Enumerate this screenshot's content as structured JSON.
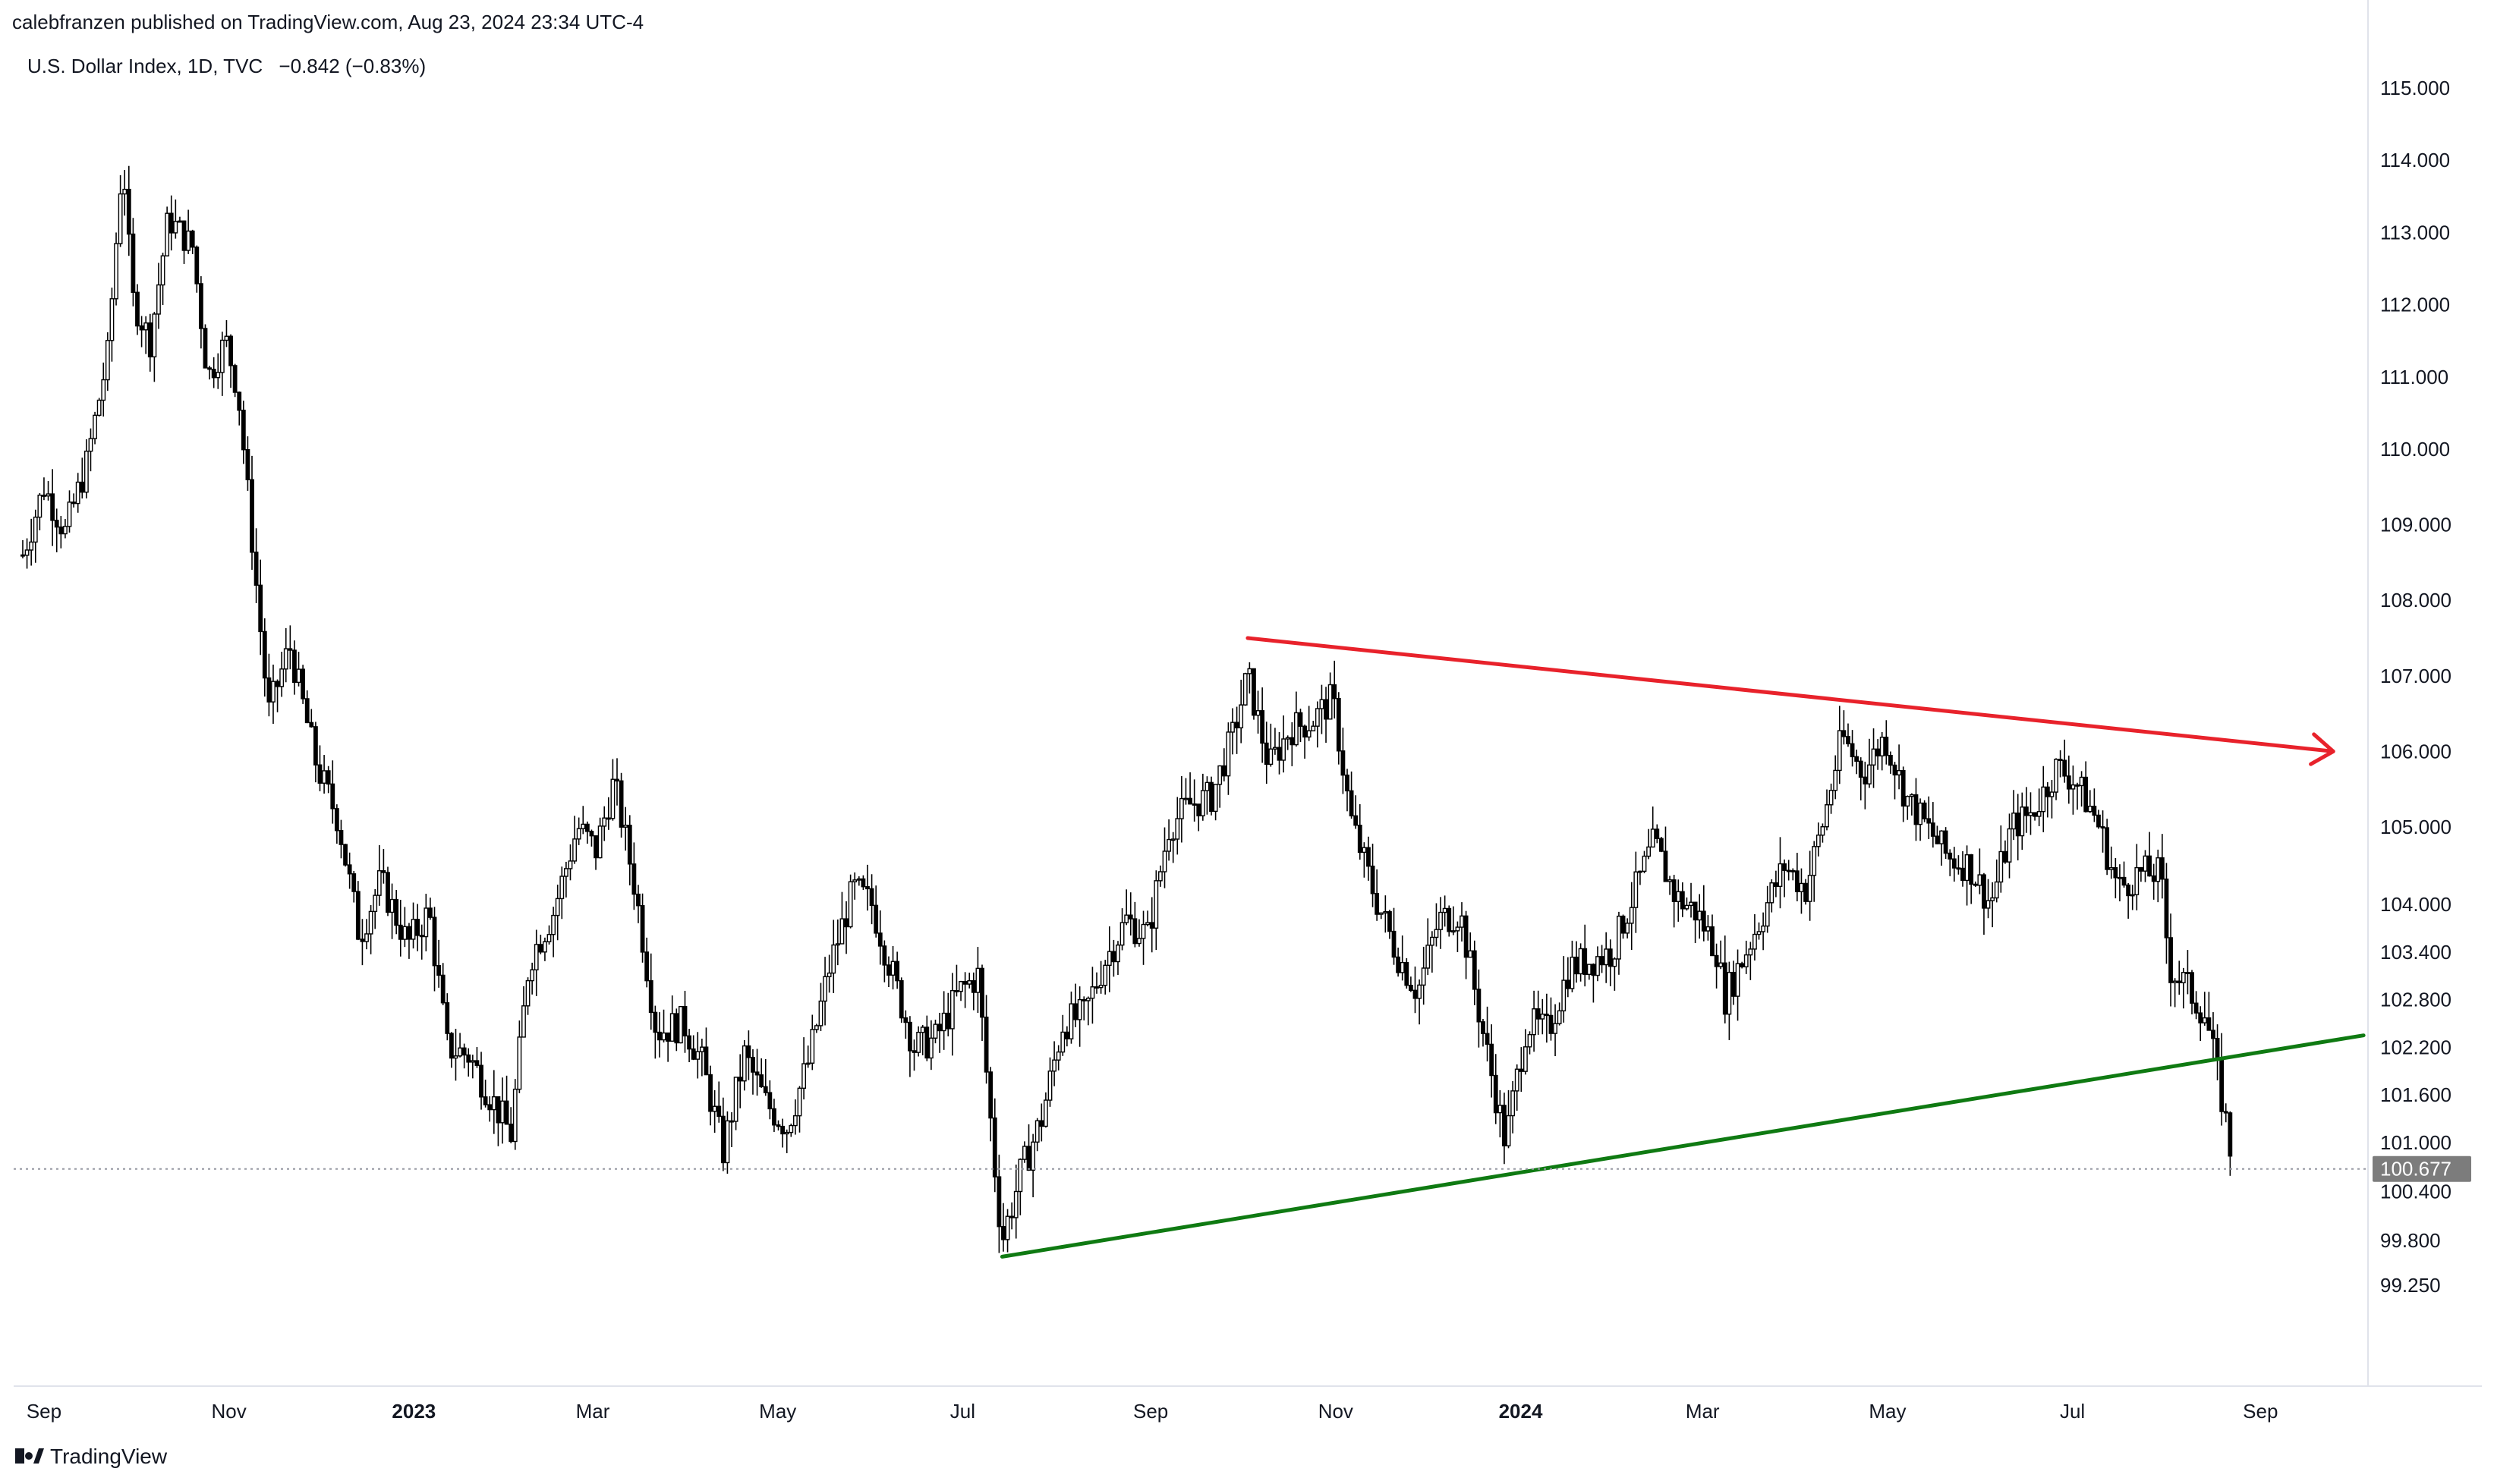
{
  "header": {
    "published": "calebfranzen published on TradingView.com, Aug 23, 2024 23:34 UTC-4"
  },
  "symbol": {
    "name": "U.S. Dollar Index, 1D, TVC",
    "change": "−0.842 (−0.83%)"
  },
  "footer": {
    "brand": "TradingView"
  },
  "colors": {
    "resistance": "#e8222b",
    "support": "#0f7a12",
    "candles": "#000000",
    "price_label_bg": "#7c7c7c"
  },
  "chart_data": {
    "type": "candlestick",
    "title": "U.S. Dollar Index, 1D, TVC",
    "xlabel": "",
    "ylabel": "",
    "y_ticks": [
      "115.000",
      "114.000",
      "113.000",
      "112.000",
      "111.000",
      "110.000",
      "109.000",
      "108.000",
      "107.000",
      "106.000",
      "105.000",
      "104.000",
      "103.400",
      "102.800",
      "102.200",
      "101.600",
      "101.000",
      "100.400",
      "99.800",
      "99.250"
    ],
    "x_ticks": [
      "Sep",
      "Nov",
      "2023",
      "Mar",
      "May",
      "Jul",
      "Sep",
      "Nov",
      "2024",
      "Mar",
      "May",
      "Jul",
      "Sep"
    ],
    "last_price": "100.677",
    "close_path": [
      [
        "2022-08-25",
        108.6
      ],
      [
        "2022-09-01",
        109.5
      ],
      [
        "2022-09-08",
        108.9
      ],
      [
        "2022-09-15",
        109.8
      ],
      [
        "2022-09-22",
        111.3
      ],
      [
        "2022-09-27",
        114.1
      ],
      [
        "2022-09-30",
        112.1
      ],
      [
        "2022-10-06",
        111.5
      ],
      [
        "2022-10-12",
        113.2
      ],
      [
        "2022-10-20",
        112.8
      ],
      [
        "2022-10-25",
        111.0
      ],
      [
        "2022-10-31",
        111.5
      ],
      [
        "2022-11-04",
        110.8
      ],
      [
        "2022-11-10",
        108.2
      ],
      [
        "2022-11-14",
        106.5
      ],
      [
        "2022-11-21",
        107.4
      ],
      [
        "2022-11-30",
        105.8
      ],
      [
        "2022-12-07",
        105.1
      ],
      [
        "2022-12-14",
        103.6
      ],
      [
        "2022-12-21",
        104.3
      ],
      [
        "2022-12-30",
        103.5
      ],
      [
        "2023-01-06",
        103.9
      ],
      [
        "2023-01-12",
        102.2
      ],
      [
        "2023-01-19",
        102.1
      ],
      [
        "2023-01-26",
        101.6
      ],
      [
        "2023-02-02",
        101.1
      ],
      [
        "2023-02-08",
        103.3
      ],
      [
        "2023-02-16",
        103.9
      ],
      [
        "2023-02-24",
        105.0
      ],
      [
        "2023-03-02",
        104.7
      ],
      [
        "2023-03-08",
        105.6
      ],
      [
        "2023-03-15",
        104.2
      ],
      [
        "2023-03-22",
        102.4
      ],
      [
        "2023-03-31",
        102.5
      ],
      [
        "2023-04-06",
        102.0
      ],
      [
        "2023-04-13",
        100.9
      ],
      [
        "2023-04-20",
        102.1
      ],
      [
        "2023-04-27",
        101.5
      ],
      [
        "2023-05-04",
        101.2
      ],
      [
        "2023-05-11",
        102.0
      ],
      [
        "2023-05-18",
        103.2
      ],
      [
        "2023-05-26",
        104.2
      ],
      [
        "2023-06-01",
        104.0
      ],
      [
        "2023-06-08",
        103.1
      ],
      [
        "2023-06-15",
        102.2
      ],
      [
        "2023-06-22",
        102.3
      ],
      [
        "2023-06-30",
        102.9
      ],
      [
        "2023-07-06",
        103.1
      ],
      [
        "2023-07-12",
        100.5
      ],
      [
        "2023-07-14",
        99.8
      ],
      [
        "2023-07-20",
        100.6
      ],
      [
        "2023-07-27",
        101.3
      ],
      [
        "2023-08-03",
        102.5
      ],
      [
        "2023-08-10",
        102.6
      ],
      [
        "2023-08-17",
        103.3
      ],
      [
        "2023-08-24",
        103.8
      ],
      [
        "2023-08-31",
        103.6
      ],
      [
        "2023-09-07",
        105.0
      ],
      [
        "2023-09-14",
        105.3
      ],
      [
        "2023-09-21",
        105.4
      ],
      [
        "2023-09-28",
        106.2
      ],
      [
        "2023-10-03",
        107.0
      ],
      [
        "2023-10-10",
        105.8
      ],
      [
        "2023-10-17",
        106.3
      ],
      [
        "2023-10-24",
        106.4
      ],
      [
        "2023-10-31",
        106.7
      ],
      [
        "2023-11-06",
        105.1
      ],
      [
        "2023-11-14",
        104.1
      ],
      [
        "2023-11-21",
        103.4
      ],
      [
        "2023-11-28",
        102.9
      ],
      [
        "2023-12-05",
        103.8
      ],
      [
        "2023-12-12",
        103.9
      ],
      [
        "2023-12-20",
        102.3
      ],
      [
        "2023-12-27",
        101.0
      ],
      [
        "2024-01-03",
        102.5
      ],
      [
        "2024-01-10",
        102.4
      ],
      [
        "2024-01-17",
        103.2
      ],
      [
        "2024-01-24",
        103.3
      ],
      [
        "2024-01-31",
        103.4
      ],
      [
        "2024-02-07",
        104.1
      ],
      [
        "2024-02-14",
        104.8
      ],
      [
        "2024-02-21",
        104.1
      ],
      [
        "2024-02-28",
        103.9
      ],
      [
        "2024-03-06",
        103.4
      ],
      [
        "2024-03-08",
        102.8
      ],
      [
        "2024-03-14",
        103.3
      ],
      [
        "2024-03-21",
        103.9
      ],
      [
        "2024-03-28",
        104.5
      ],
      [
        "2024-04-04",
        104.2
      ],
      [
        "2024-04-10",
        105.1
      ],
      [
        "2024-04-16",
        106.2
      ],
      [
        "2024-04-23",
        105.7
      ],
      [
        "2024-04-30",
        106.2
      ],
      [
        "2024-05-07",
        105.4
      ],
      [
        "2024-05-14",
        105.0
      ],
      [
        "2024-05-21",
        104.6
      ],
      [
        "2024-05-28",
        104.5
      ],
      [
        "2024-06-04",
        104.0
      ],
      [
        "2024-06-11",
        105.0
      ],
      [
        "2024-06-18",
        105.2
      ],
      [
        "2024-06-26",
        105.8
      ],
      [
        "2024-07-02",
        105.6
      ],
      [
        "2024-07-09",
        105.1
      ],
      [
        "2024-07-16",
        104.2
      ],
      [
        "2024-07-23",
        104.4
      ],
      [
        "2024-07-30",
        104.4
      ],
      [
        "2024-08-02",
        103.2
      ],
      [
        "2024-08-07",
        103.0
      ],
      [
        "2024-08-14",
        102.6
      ],
      [
        "2024-08-20",
        101.4
      ],
      [
        "2024-08-23",
        100.677
      ]
    ],
    "annotations": [
      {
        "name": "resistance line",
        "from": [
          "2023-10-03",
          107.5
        ],
        "to": [
          "2024-09-25",
          106.0
        ],
        "arrow": true
      },
      {
        "name": "support line",
        "from": [
          "2023-07-14",
          99.6
        ],
        "to": [
          "2024-10-05",
          102.35
        ]
      }
    ],
    "grid": false,
    "legend": "none"
  }
}
